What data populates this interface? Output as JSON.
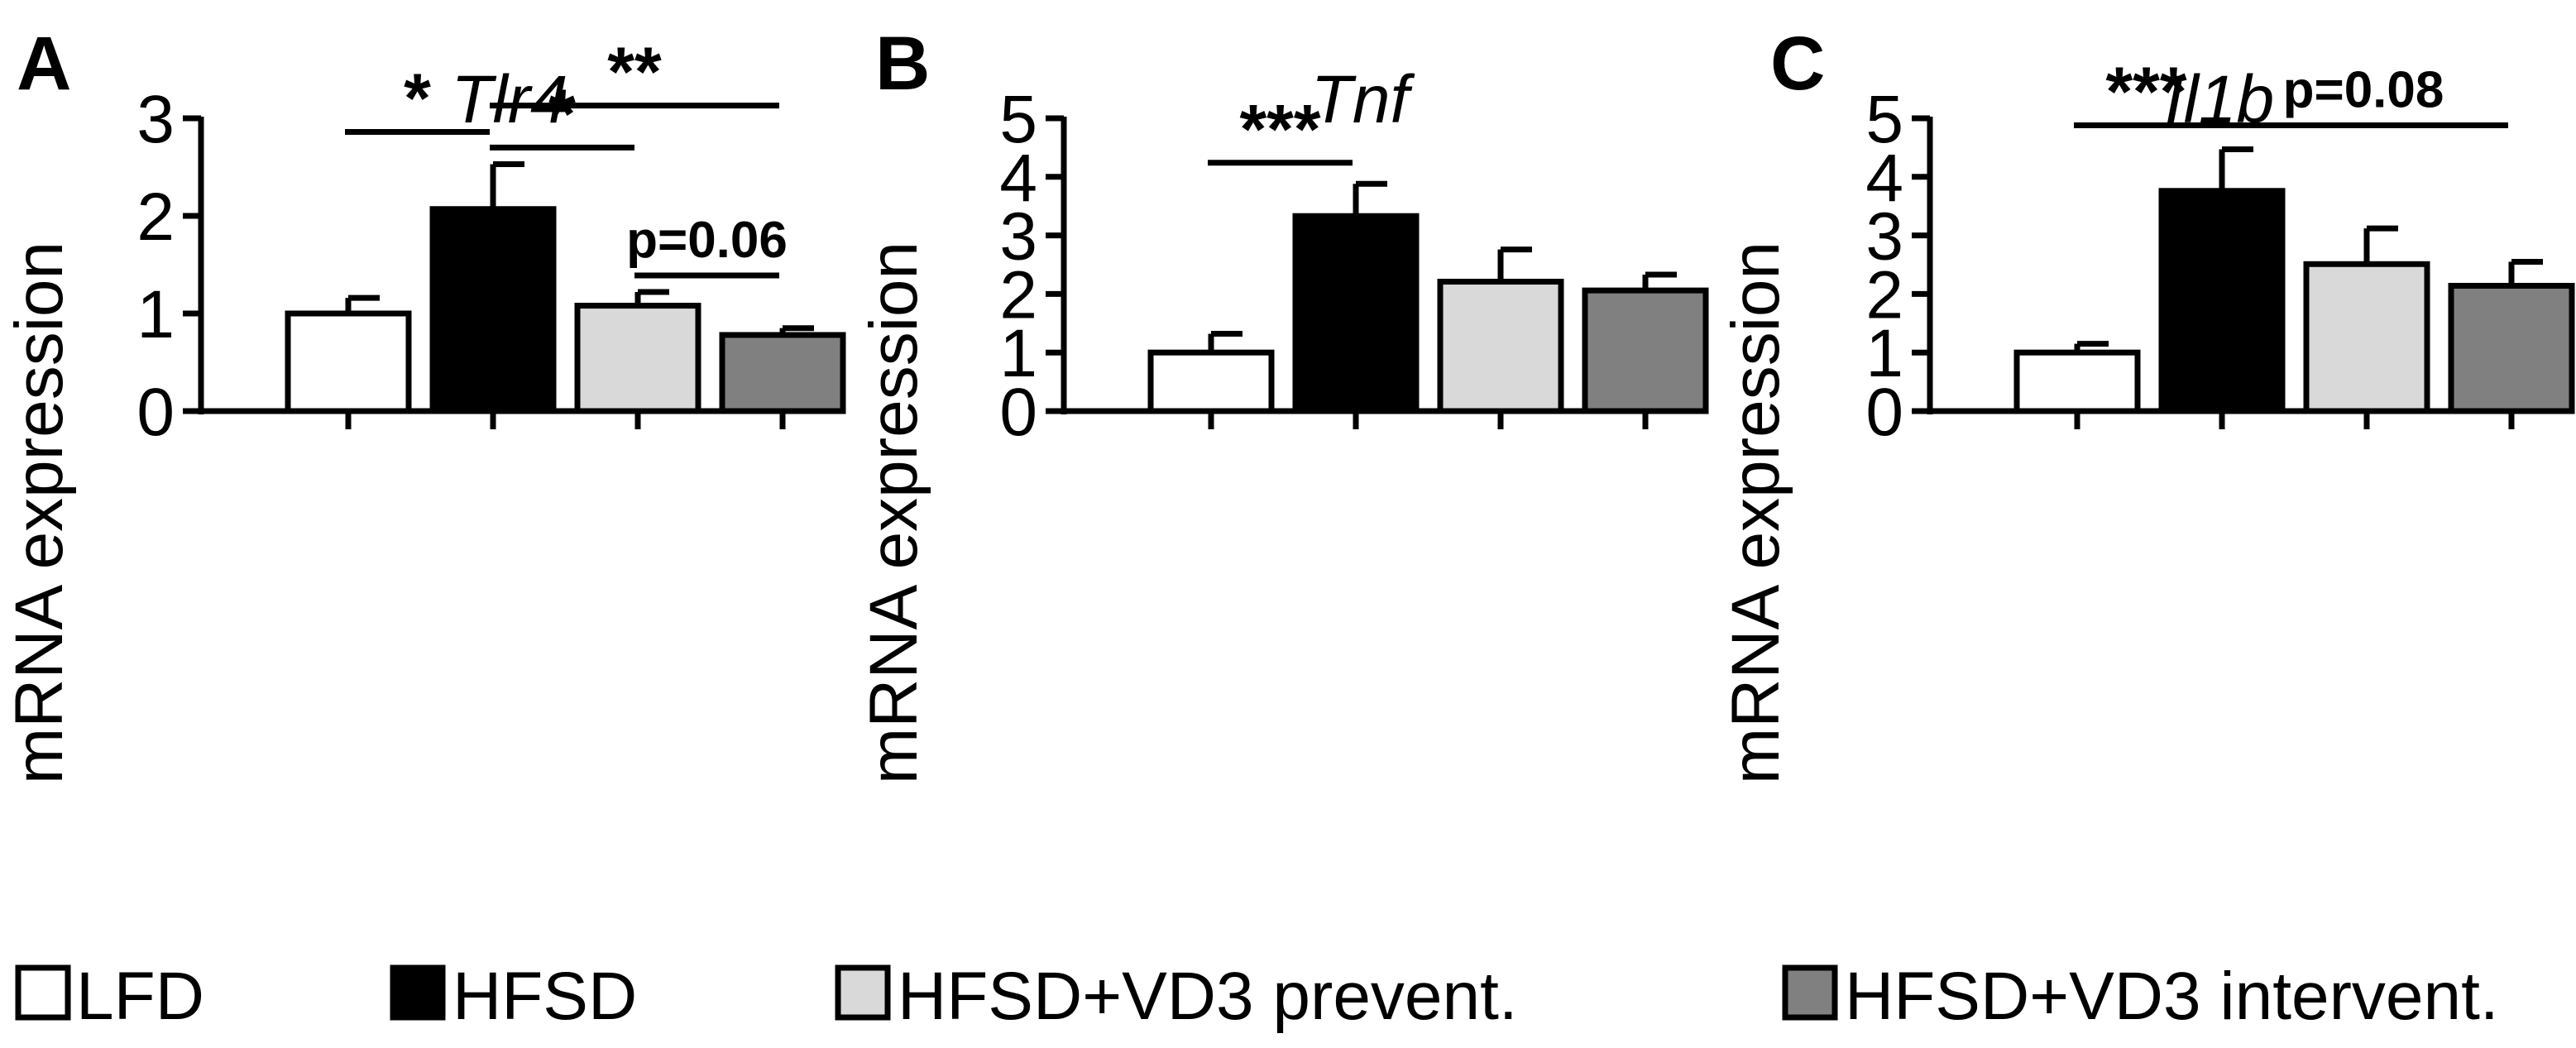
{
  "legend": [
    {
      "label": "LFD",
      "color": "#ffffff"
    },
    {
      "label": "HFSD",
      "color": "#000000"
    },
    {
      "label": "HFSD+VD3 prevent.",
      "color": "#d9d9d9"
    },
    {
      "label": "HFSD+VD3 intervent.",
      "color": "#808080"
    }
  ],
  "chart_data": [
    {
      "panel": "A",
      "type": "bar",
      "title": "Tlr4",
      "ylabel": "mRNA expression",
      "xlabel": "",
      "categories": [
        "LFD",
        "HFSD",
        "HFSD+VD3 prevent.",
        "HFSD+VD3 intervent."
      ],
      "values": [
        1.0,
        2.07,
        1.08,
        0.78
      ],
      "errors": [
        0.16,
        0.46,
        0.14,
        0.07
      ],
      "ylim": [
        0,
        3
      ],
      "yticks": [
        "0",
        "1",
        "2",
        "3"
      ],
      "significance": [
        {
          "from": 0,
          "to": 1,
          "label": "*",
          "y": 2.86
        },
        {
          "from": 1,
          "to": 2,
          "label": "*",
          "y": 2.7
        },
        {
          "from": 1,
          "to": 3,
          "label": "**",
          "y": 3.13
        },
        {
          "from": 2,
          "to": 3,
          "label": "p=0.06",
          "y": 1.39
        }
      ]
    },
    {
      "panel": "B",
      "type": "bar",
      "title": "Tnf",
      "ylabel": "mRNA expression",
      "xlabel": "",
      "categories": [
        "LFD",
        "HFSD",
        "HFSD+VD3 prevent.",
        "HFSD+VD3 intervent."
      ],
      "values": [
        1.0,
        3.33,
        2.21,
        2.06
      ],
      "errors": [
        0.32,
        0.55,
        0.55,
        0.27
      ],
      "ylim": [
        0,
        5
      ],
      "yticks": [
        "0",
        "1",
        "2",
        "3",
        "4",
        "5"
      ],
      "significance": [
        {
          "from": 0,
          "to": 1,
          "label": "***",
          "y": 4.24
        }
      ]
    },
    {
      "panel": "C",
      "type": "bar",
      "title": "Il1b",
      "ylabel": "mRNA expression",
      "xlabel": "",
      "categories": [
        "LFD",
        "HFSD",
        "HFSD+VD3 prevent.",
        "HFSD+VD3 intervent."
      ],
      "values": [
        1.0,
        3.76,
        2.51,
        2.14
      ],
      "errors": [
        0.15,
        0.71,
        0.61,
        0.41
      ],
      "ylim": [
        0,
        5
      ],
      "yticks": [
        "0",
        "1",
        "2",
        "3",
        "4",
        "5"
      ],
      "significance": [
        {
          "from": 0,
          "to": 1,
          "label": "***",
          "y": 4.88
        },
        {
          "from": 1,
          "to": 3,
          "label": "p=0.08",
          "y": 4.88
        }
      ]
    }
  ]
}
